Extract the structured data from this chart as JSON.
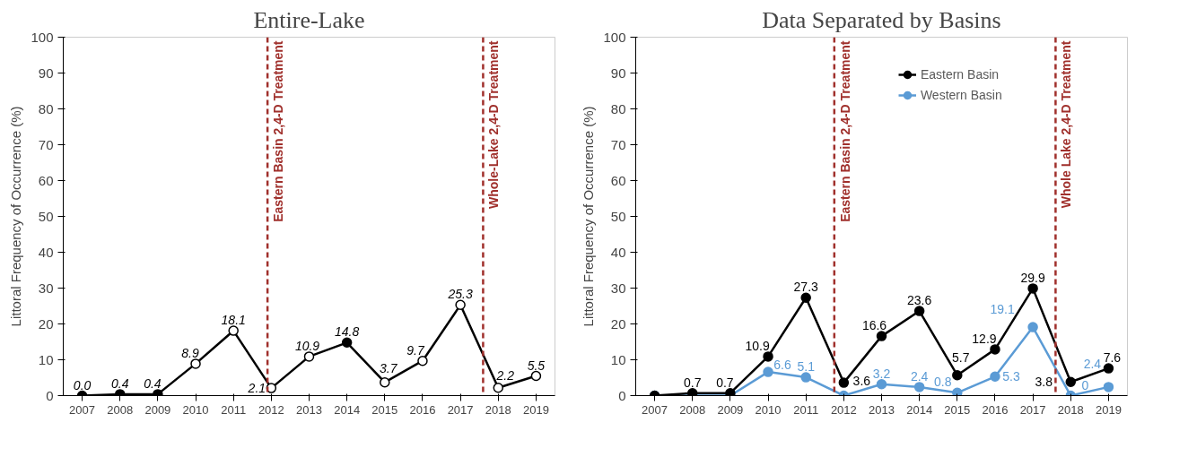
{
  "chart_data": [
    {
      "type": "line",
      "title": "Entire-Lake",
      "ylabel": "Littoral Frequency of Occurrence (%)",
      "x": [
        2007,
        2008,
        2009,
        2010,
        2011,
        2012,
        2013,
        2014,
        2015,
        2016,
        2017,
        2018,
        2019
      ],
      "xlim": [
        2006.5,
        2019.5
      ],
      "xticks": [
        2007,
        2008,
        2009,
        2010,
        2011,
        2012,
        2013,
        2014,
        2015,
        2016,
        2017,
        2018,
        2019
      ],
      "ylim": [
        0,
        100
      ],
      "yticks": [
        0,
        10,
        20,
        30,
        40,
        50,
        60,
        70,
        80,
        90,
        100
      ],
      "series": [
        {
          "color": "#000000",
          "colors": [
            "#000000",
            "#000000",
            "#000000",
            "#ffffff",
            "#ffffff",
            "#ffffff",
            "#ffffff",
            "#000000",
            "#ffffff",
            "#ffffff",
            "#ffffff",
            "#ffffff",
            "#ffffff"
          ],
          "values": [
            0,
            0.4,
            0.4,
            8.9,
            18.1,
            2.1,
            10.9,
            14.8,
            3.7,
            9.7,
            25.3,
            2.2,
            5.5
          ],
          "value_labels": [
            "0.0",
            "0.4",
            "0.4",
            "8.9",
            "18.1",
            "2.1",
            "10.9",
            "14.8",
            "3.7",
            "9.7",
            "25.3",
            "2.2",
            "5.5"
          ]
        }
      ],
      "ref_lines": [
        {
          "axis": "x",
          "value": 2011.9,
          "label": "Eastern Basin 2,4-D Treatment",
          "color": "#a0302c",
          "line_style": "dashed"
        },
        {
          "axis": "x",
          "value": 2017.6,
          "label": "Whole-Lake 2,4-D Treatment",
          "color": "#a0302c",
          "line_style": "dashed"
        }
      ],
      "marker": "circle",
      "line_style": "solid",
      "grid": false,
      "legend": false
    },
    {
      "type": "line",
      "title": "Data Separated by Basins",
      "ylabel": "Littoral Frequency of Occurrence (%)",
      "x": [
        2007,
        2008,
        2009,
        2010,
        2011,
        2012,
        2013,
        2014,
        2015,
        2016,
        2017,
        2018,
        2019
      ],
      "xlim": [
        2006.5,
        2019.5
      ],
      "xticks": [
        2007,
        2008,
        2009,
        2010,
        2011,
        2012,
        2013,
        2014,
        2015,
        2016,
        2017,
        2018,
        2019
      ],
      "ylim": [
        0,
        100
      ],
      "yticks": [
        0,
        10,
        20,
        30,
        40,
        50,
        60,
        70,
        80,
        90,
        100
      ],
      "series": [
        {
          "name": "Eastern Basin",
          "color": "#000000",
          "values": [
            0,
            0.7,
            0.7,
            10.9,
            27.3,
            3.6,
            16.6,
            23.6,
            5.7,
            12.9,
            29.9,
            3.8,
            7.6
          ],
          "value_labels": [
            null,
            "0.7",
            "0.7",
            "10.9",
            "27.3",
            "3.6",
            "16.6",
            "23.6",
            "5.7",
            "12.9",
            "29.9",
            "3.8",
            "7.6"
          ]
        },
        {
          "name": "Western Basin",
          "color": "#5b9bd5",
          "values": [
            0,
            0,
            0,
            6.6,
            5.1,
            0,
            3.2,
            2.4,
            0.8,
            5.3,
            19.1,
            0,
            2.4
          ],
          "value_labels": [
            null,
            null,
            null,
            "6.6",
            "5.1",
            null,
            "3.2",
            "2.4",
            "0.8",
            "5.3",
            "19.1",
            "0",
            "2.4"
          ]
        }
      ],
      "ref_lines": [
        {
          "axis": "x",
          "value": 2011.75,
          "label": "Eastern Basin 2,4-D Treatment",
          "color": "#a0302c",
          "line_style": "dashed"
        },
        {
          "axis": "x",
          "value": 2017.6,
          "label": "Whole Lake 2,4-D Treatment",
          "color": "#a0302c",
          "line_style": "dashed"
        }
      ],
      "marker": "circle",
      "line_style": "solid",
      "grid": false,
      "legend": "top right"
    }
  ]
}
